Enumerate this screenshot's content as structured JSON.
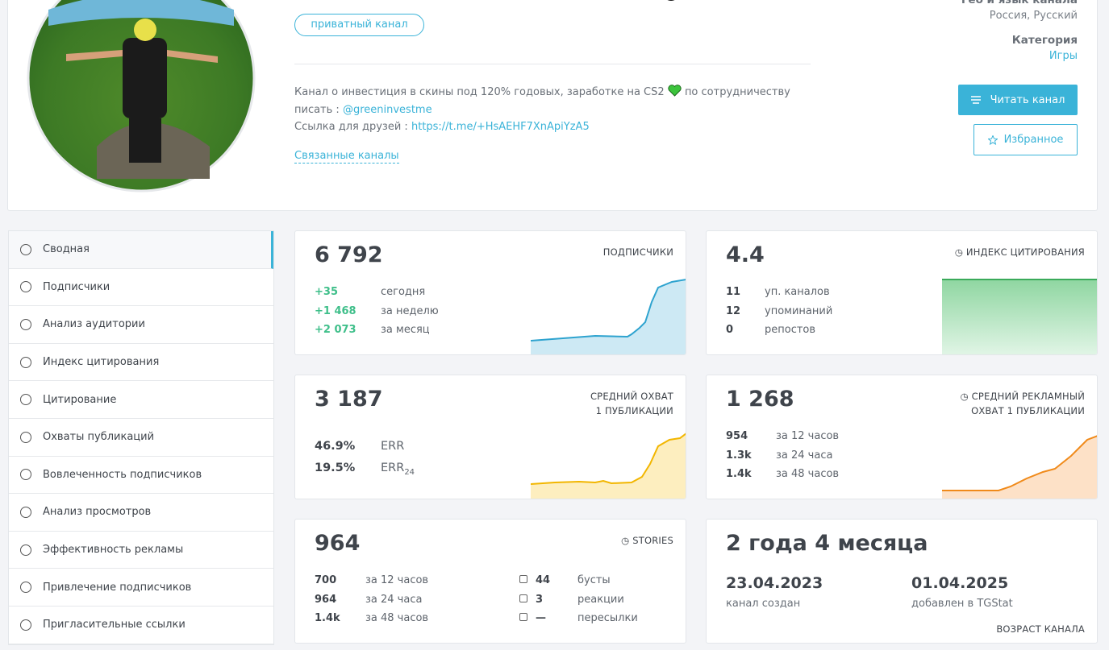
{
  "header": {
    "geo_title": "Гео и язык канала",
    "geo_value": "Россия, Русский",
    "category_title": "Категория",
    "category_value": "Игры",
    "badge": "приватный канал",
    "description": {
      "text_1": "Канал о инвестиция в скины под 120% годовых, заработке на CS2",
      "text_2": "по сотрудничеству",
      "text_3": "писать :",
      "mention": "@greeninvestme",
      "friends_label": "Ссылка для друзей :",
      "friends_link": "https://t.me/+HsAEHF7XnApiYzA5"
    },
    "related": "Связанные каналы",
    "read_button": "Читать канал",
    "favorite_button": "Избранное"
  },
  "menu": [
    "Сводная",
    "Подписчики",
    "Анализ аудитории",
    "Индекс цитирования",
    "Цитирование",
    "Охваты публикаций",
    "Вовлеченность подписчиков",
    "Анализ просмотров",
    "Эффективность рекламы",
    "Привлечение подписчиков",
    "Пригласительные ссылки"
  ],
  "cards": {
    "subscribers": {
      "value": "6 792",
      "title": "ПОДПИСЧИКИ",
      "rows": [
        [
          "+35",
          "сегодня"
        ],
        [
          "+1 468",
          "за неделю"
        ],
        [
          "+2 073",
          "за месяц"
        ]
      ]
    },
    "citation": {
      "value": "4.4",
      "title": "ИНДЕКС ЦИТИРОВАНИЯ",
      "rows": [
        [
          "11",
          "уп. каналов"
        ],
        [
          "12",
          "упоминаний"
        ],
        [
          "0",
          "репостов"
        ]
      ]
    },
    "reach": {
      "value": "3 187",
      "title_1": "СРЕДНИЙ ОХВАТ",
      "title_2": "1 ПУБЛИКАЦИИ",
      "rows": [
        [
          "46.9%",
          "ERR"
        ],
        [
          "19.5%",
          "ERR",
          "24"
        ]
      ]
    },
    "ad_reach": {
      "value": "1 268",
      "title_1": "СРЕДНИЙ РЕКЛАМНЫЙ",
      "title_2": "ОХВАТ 1 ПУБЛИКАЦИИ",
      "rows": [
        [
          "954",
          "за 12 часов"
        ],
        [
          "1.3k",
          "за 24 часа"
        ],
        [
          "1.4k",
          "за 48 часов"
        ]
      ]
    },
    "stories": {
      "value": "964",
      "title": "STORIES",
      "rows": [
        [
          "700",
          "за 12 часов"
        ],
        [
          "964",
          "за 24 часа"
        ],
        [
          "1.4k",
          "за 48 часов"
        ]
      ],
      "stats": [
        [
          "44",
          "бусты"
        ],
        [
          "3",
          "реакции"
        ],
        [
          "—",
          "пересылки"
        ]
      ]
    },
    "age": {
      "value": "2 года 4 месяца",
      "created": "23.04.2023",
      "created_label": "канал создан",
      "added": "01.04.2025",
      "added_label": "добавлен в TGStat",
      "title": "ВОЗРАСТ КАНАЛА"
    }
  }
}
